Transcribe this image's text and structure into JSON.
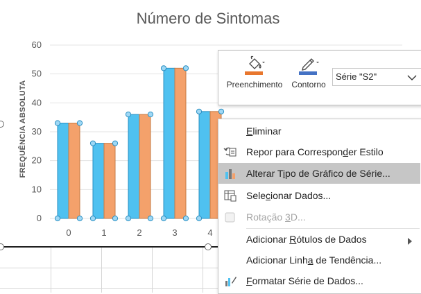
{
  "chart": {
    "title": "Número de Sintomas",
    "ylabel": "FREQUÊNCIA ABSOLUTA"
  },
  "chart_data": {
    "type": "bar",
    "title": "Número de Sintomas",
    "xlabel": "",
    "ylabel": "FREQUÊNCIA ABSOLUTA",
    "categories": [
      "0",
      "1",
      "2",
      "3",
      "4"
    ],
    "series": [
      {
        "values": [
          33,
          26,
          36,
          52,
          37
        ],
        "color": "#4fc1f0"
      },
      {
        "name": "S2",
        "values": [
          33,
          26,
          36,
          52,
          37
        ],
        "color": "#f4a16b"
      }
    ],
    "yticks": [
      "0",
      "10",
      "20",
      "30",
      "40",
      "50",
      "60"
    ],
    "ylim": [
      0,
      60
    ],
    "grid": true
  },
  "toolbar": {
    "fill_label": "Preenchimento",
    "outline_label": "Contorno",
    "series_value": "Série \"S2\"",
    "fill_color": "#e8772e",
    "outline_color": "#4472c4"
  },
  "menu": {
    "items": [
      {
        "pre": "",
        "u": "E",
        "post": "liminar",
        "icon": "none-icon",
        "state": "normal"
      },
      {
        "pre": "Repor para Correspon",
        "u": "d",
        "post": "er Estilo",
        "icon": "reset-style-icon",
        "state": "normal"
      },
      {
        "pre": "Alterar T",
        "u": "i",
        "post": "po de Gráfico de Série...",
        "icon": "change-chart-type-icon",
        "state": "highlight"
      },
      {
        "pre": "Sele",
        "u": "c",
        "post": "ionar Dados...",
        "icon": "select-data-icon",
        "state": "normal"
      },
      {
        "pre": "Rotação ",
        "u": "3",
        "post": "D...",
        "icon": "rotation-3d-icon",
        "state": "disabled"
      },
      {
        "pre": "Adicionar ",
        "u": "R",
        "post": "ótulos de Dados",
        "icon": "none-icon",
        "state": "submenu"
      },
      {
        "pre": "Adicionar Linh",
        "u": "a",
        "post": " de Tendência...",
        "icon": "none-icon",
        "state": "normal"
      },
      {
        "pre": "",
        "u": "F",
        "post": "ormatar Série de Dados...",
        "icon": "format-series-icon",
        "state": "normal"
      }
    ]
  }
}
